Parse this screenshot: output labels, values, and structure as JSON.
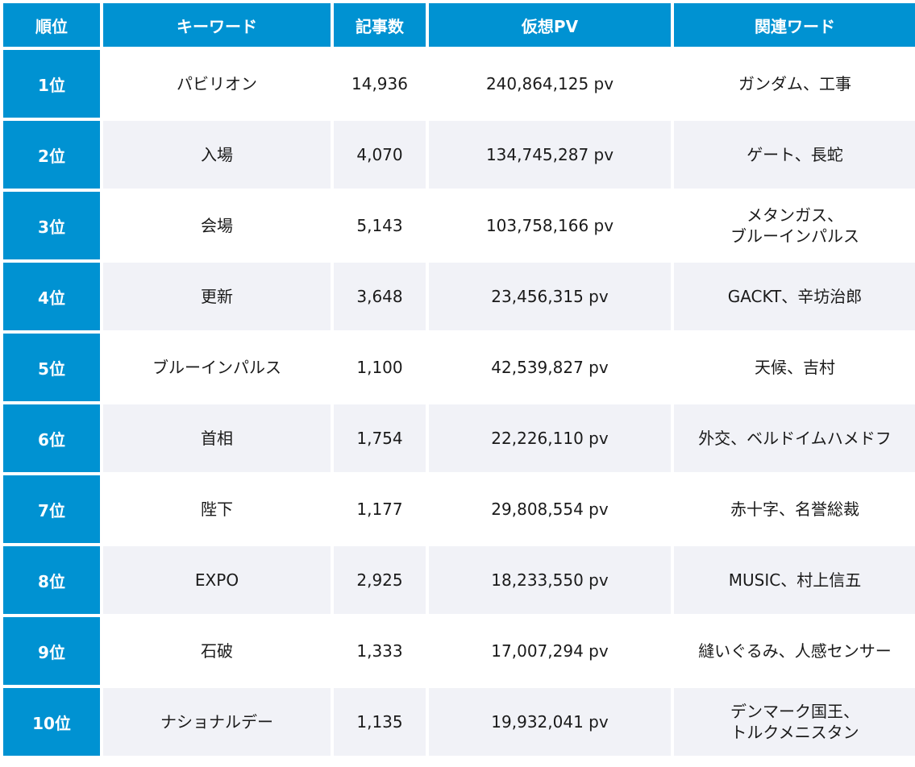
{
  "headers": {
    "rank": "順位",
    "keyword": "キーワード",
    "articles": "記事数",
    "pv": "仮想PV",
    "related": "関連ワード"
  },
  "rows": [
    {
      "rank": "1位",
      "keyword": "パビリオン",
      "articles": "14,936",
      "pv": "240,864,125 pv",
      "related": [
        "ガンダム、工事"
      ]
    },
    {
      "rank": "2位",
      "keyword": "入場",
      "articles": "4,070",
      "pv": "134,745,287 pv",
      "related": [
        "ゲート、長蛇"
      ]
    },
    {
      "rank": "3位",
      "keyword": "会場",
      "articles": "5,143",
      "pv": "103,758,166 pv",
      "related": [
        "メタンガス、",
        "ブルーインパルス"
      ]
    },
    {
      "rank": "4位",
      "keyword": "更新",
      "articles": "3,648",
      "pv": "23,456,315 pv",
      "related": [
        "GACKT、辛坊治郎"
      ]
    },
    {
      "rank": "5位",
      "keyword": "ブルーインパルス",
      "articles": "1,100",
      "pv": "42,539,827 pv",
      "related": [
        "天候、吉村"
      ]
    },
    {
      "rank": "6位",
      "keyword": "首相",
      "articles": "1,754",
      "pv": "22,226,110 pv",
      "related": [
        "外交、ベルドイムハメドフ"
      ]
    },
    {
      "rank": "7位",
      "keyword": "陛下",
      "articles": "1,177",
      "pv": "29,808,554 pv",
      "related": [
        "赤十字、名誉総裁"
      ]
    },
    {
      "rank": "8位",
      "keyword": "EXPO",
      "articles": "2,925",
      "pv": "18,233,550 pv",
      "related": [
        "MUSIC、村上信五"
      ]
    },
    {
      "rank": "9位",
      "keyword": "石破",
      "articles": "1,333",
      "pv": "17,007,294 pv",
      "related": [
        "縫いぐるみ、人感センサー"
      ]
    },
    {
      "rank": "10位",
      "keyword": "ナショナルデー",
      "articles": "1,135",
      "pv": "19,932,041 pv",
      "related": [
        "デンマーク国王、",
        "トルクメニスタン"
      ]
    }
  ],
  "colors": {
    "header_bg": "#0092d2",
    "row_alt_bg": "#f1f2f7"
  }
}
